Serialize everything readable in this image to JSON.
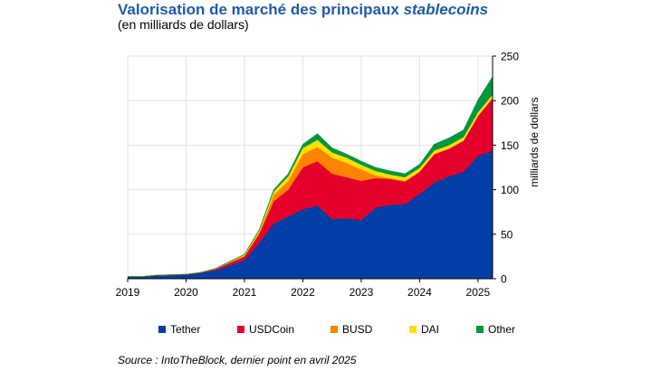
{
  "title": {
    "main": "Valorisation de marché des principaux ",
    "italic": "stablecoins"
  },
  "subtitle": "(en milliards de dollars)",
  "source": "Source : IntoTheBlock, dernier point en avril 2025",
  "chart_data": {
    "type": "area",
    "stacked": true,
    "ylabel": "milliards de dollars",
    "y_axis_side": "right",
    "ylim": [
      0,
      250
    ],
    "yticks": [
      0,
      50,
      100,
      150,
      200,
      250
    ],
    "xlim": [
      2019,
      2025.25
    ],
    "xticks": [
      2019,
      2020,
      2021,
      2022,
      2023,
      2024,
      2025
    ],
    "grid": true,
    "legend_position": "bottom",
    "x": [
      2019.0,
      2019.25,
      2019.5,
      2019.75,
      2020.0,
      2020.25,
      2020.5,
      2020.75,
      2021.0,
      2021.25,
      2021.5,
      2021.75,
      2022.0,
      2022.25,
      2022.5,
      2022.75,
      2023.0,
      2023.25,
      2023.5,
      2023.75,
      2024.0,
      2024.25,
      2024.5,
      2024.75,
      2025.0,
      2025.25
    ],
    "series": [
      {
        "name": "Tether",
        "color": "#003da5",
        "values": [
          2,
          2,
          3.5,
          4,
          4.5,
          6.5,
          9.5,
          15,
          21,
          40,
          62,
          70,
          78,
          82,
          67,
          68,
          66,
          80,
          83,
          84,
          95,
          108,
          115,
          120,
          138,
          144
        ]
      },
      {
        "name": "USDCoin",
        "color": "#e4002b",
        "values": [
          0.5,
          0.5,
          0.5,
          0.5,
          0.5,
          0.5,
          1.5,
          3,
          4,
          10,
          25,
          30,
          47,
          50,
          51,
          46,
          44,
          33,
          29,
          25,
          25,
          32,
          31,
          35,
          45,
          59
        ]
      },
      {
        "name": "BUSD",
        "color": "#ff8200",
        "values": [
          0,
          0,
          0,
          0,
          0,
          0,
          0,
          0.5,
          1,
          2,
          7,
          10,
          15,
          16,
          18,
          16,
          13,
          3,
          1,
          1,
          0.5,
          0,
          0,
          0,
          0,
          0
        ]
      },
      {
        "name": "DAI",
        "color": "#ffde00",
        "values": [
          0,
          0,
          0,
          0,
          0,
          0,
          0.3,
          0.5,
          1,
          2,
          4,
          5,
          7,
          8,
          6,
          6,
          5,
          5,
          4,
          4,
          4,
          4,
          4,
          4,
          4,
          4
        ]
      },
      {
        "name": "Other",
        "color": "#00963f",
        "values": [
          0,
          0,
          0,
          0,
          0,
          0,
          0.2,
          0.5,
          0.5,
          1,
          2,
          3,
          4,
          7,
          5,
          4,
          4,
          4,
          4,
          4,
          4,
          7,
          8,
          8,
          14,
          20
        ]
      }
    ]
  }
}
